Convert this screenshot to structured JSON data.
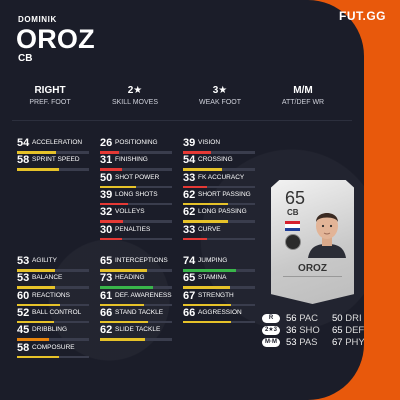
{
  "player": {
    "first_name": "DOMINIK",
    "last_name": "OROZ",
    "position": "CB"
  },
  "brand": {
    "logo": "FUT.GG"
  },
  "info": [
    {
      "value": "RIGHT",
      "label": "PREF. FOOT"
    },
    {
      "value": "2★",
      "label": "SKILL MOVES"
    },
    {
      "value": "3★",
      "label": "WEAK FOOT"
    },
    {
      "value": "M/M",
      "label": "ATT/DEF WR"
    }
  ],
  "colors": {
    "accent": "#e8590c",
    "panel": "#1b1d29",
    "green": "#39b54a",
    "yellow": "#e6c229",
    "orange": "#e8840c",
    "red": "#e53935"
  },
  "stat_groups": [
    {
      "stats": [
        {
          "value": "54",
          "label": "ACCELERATION"
        },
        {
          "value": "58",
          "label": "SPRINT SPEED"
        }
      ]
    },
    {
      "stats": [
        {
          "value": "26",
          "label": "POSITIONING"
        },
        {
          "value": "31",
          "label": "FINISHING"
        },
        {
          "value": "50",
          "label": "SHOT POWER"
        },
        {
          "value": "39",
          "label": "LONG SHOTS"
        },
        {
          "value": "32",
          "label": "VOLLEYS"
        },
        {
          "value": "30",
          "label": "PENALTIES"
        }
      ]
    },
    {
      "stats": [
        {
          "value": "39",
          "label": "VISION"
        },
        {
          "value": "54",
          "label": "CROSSING"
        },
        {
          "value": "33",
          "label": "FK ACCURACY"
        },
        {
          "value": "62",
          "label": "SHORT PASSING"
        },
        {
          "value": "62",
          "label": "LONG PASSING"
        },
        {
          "value": "33",
          "label": "CURVE"
        }
      ]
    },
    {
      "stats": [
        {
          "value": "53",
          "label": "AGILITY"
        },
        {
          "value": "53",
          "label": "BALANCE"
        },
        {
          "value": "60",
          "label": "REACTIONS"
        },
        {
          "value": "52",
          "label": "BALL CONTROL"
        },
        {
          "value": "45",
          "label": "DRIBBLING"
        },
        {
          "value": "58",
          "label": "COMPOSURE"
        }
      ]
    },
    {
      "stats": [
        {
          "value": "65",
          "label": "INTERCEPTIONS"
        },
        {
          "value": "73",
          "label": "HEADING"
        },
        {
          "value": "61",
          "label": "DEF. AWARENESS"
        },
        {
          "value": "66",
          "label": "STAND TACKLE"
        },
        {
          "value": "62",
          "label": "SLIDE TACKLE"
        }
      ]
    },
    {
      "stats": [
        {
          "value": "74",
          "label": "JUMPING"
        },
        {
          "value": "65",
          "label": "STAMINA"
        },
        {
          "value": "67",
          "label": "STRENGTH"
        },
        {
          "value": "66",
          "label": "AGGRESSION"
        }
      ]
    }
  ],
  "card": {
    "rating": "65",
    "position": "CB",
    "name": "OROZ",
    "flag_colors": [
      "#d5202e",
      "#ffffff",
      "#1f3f99"
    ],
    "badges": [
      "R",
      "2★3",
      "M·M"
    ],
    "stats_left": [
      {
        "value": "56",
        "label": "PAC"
      },
      {
        "value": "36",
        "label": "SHO"
      },
      {
        "value": "53",
        "label": "PAS"
      }
    ],
    "stats_right": [
      {
        "value": "50",
        "label": "DRI"
      },
      {
        "value": "65",
        "label": "DEF"
      },
      {
        "value": "67",
        "label": "PHY"
      }
    ]
  }
}
